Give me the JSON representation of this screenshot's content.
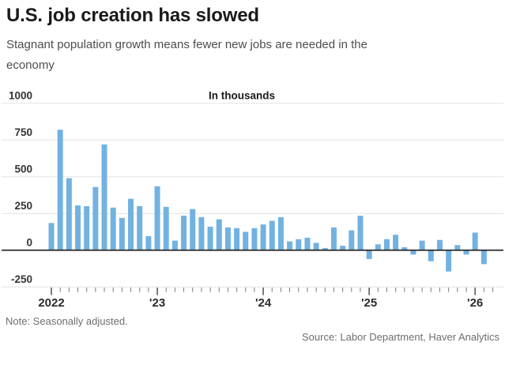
{
  "header": {
    "title": "U.S. job creation has slowed",
    "subtitle": "Stagnant population growth means fewer new jobs are needed in the economy",
    "subtitle_lines": [
      "Stagnant population growth means fewer new jobs are needed in the",
      "economy"
    ]
  },
  "footer": {
    "note": "Note: Seasonally adjusted.",
    "source": "Source: Labor Department, Haver Analytics"
  },
  "colors": {
    "bar": "#72b2e1",
    "gridline": "#e4e4e4",
    "zero_line": "#1c1c1c",
    "minor_tick": "#7a7a7a",
    "major_tick": "#444444"
  },
  "chart_data": {
    "type": "bar",
    "title": "U.S. job creation has slowed",
    "units_label": "In thousands",
    "ylabel": "In thousands",
    "xlabel": "",
    "ylim": [
      -250,
      1000
    ],
    "grid": true,
    "legend": "none",
    "y_ticks": [
      1000,
      750,
      500,
      250,
      0,
      -250
    ],
    "x_tick_labels": [
      "2022",
      "'23",
      "'24",
      "'25",
      "'26"
    ],
    "x": [
      "2022-01",
      "2022-02",
      "2022-03",
      "2022-04",
      "2022-05",
      "2022-06",
      "2022-07",
      "2022-08",
      "2022-09",
      "2022-10",
      "2022-11",
      "2022-12",
      "2023-01",
      "2023-02",
      "2023-03",
      "2023-04",
      "2023-05",
      "2023-06",
      "2023-07",
      "2023-08",
      "2023-09",
      "2023-10",
      "2023-11",
      "2023-12",
      "2024-01",
      "2024-02",
      "2024-03",
      "2024-04",
      "2024-05",
      "2024-06",
      "2024-07",
      "2024-08",
      "2024-09",
      "2024-10",
      "2024-11",
      "2024-12",
      "2025-01",
      "2025-02",
      "2025-03",
      "2025-04",
      "2025-05",
      "2025-06",
      "2025-07",
      "2025-08",
      "2025-09",
      "2025-10",
      "2025-11",
      "2025-12",
      "2026-01",
      "2026-02"
    ],
    "values": [
      185,
      820,
      490,
      305,
      300,
      430,
      720,
      290,
      220,
      350,
      300,
      95,
      435,
      295,
      65,
      235,
      280,
      225,
      160,
      210,
      155,
      150,
      125,
      150,
      175,
      200,
      225,
      60,
      75,
      85,
      50,
      15,
      155,
      30,
      135,
      235,
      -60,
      40,
      75,
      105,
      20,
      -30,
      65,
      -75,
      70,
      -145,
      35,
      -30,
      120,
      -95
    ]
  }
}
